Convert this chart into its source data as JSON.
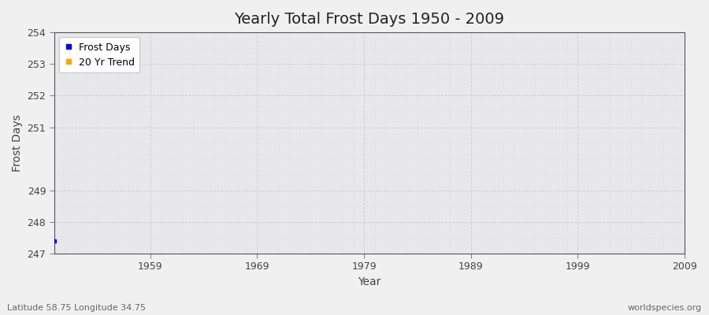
{
  "title": "Yearly Total Frost Days 1950 - 2009",
  "xlabel": "Year",
  "ylabel": "Frost Days",
  "footnote_left": "Latitude 58.75 Longitude 34.75",
  "footnote_right": "worldspecies.org",
  "xlim": [
    1950,
    2009
  ],
  "ylim": [
    247,
    254
  ],
  "yticks": [
    247,
    248,
    249,
    251,
    252,
    253,
    254
  ],
  "xticks": [
    1959,
    1969,
    1979,
    1989,
    1999,
    2009
  ],
  "data_point_x": 1950,
  "data_point_y": 247.4,
  "data_point_color": "#0000ee",
  "trend_color": "#ffa500",
  "background_color": "#f0f0f0",
  "plot_bg_color": "#e8e8ec",
  "grid_major_color": "#d0d0d8",
  "grid_minor_color": "#d8d8e0",
  "legend_frost_label": "Frost Days",
  "legend_trend_label": "20 Yr Trend",
  "title_fontsize": 14,
  "axis_label_fontsize": 10,
  "tick_fontsize": 9,
  "footnote_fontsize": 8
}
